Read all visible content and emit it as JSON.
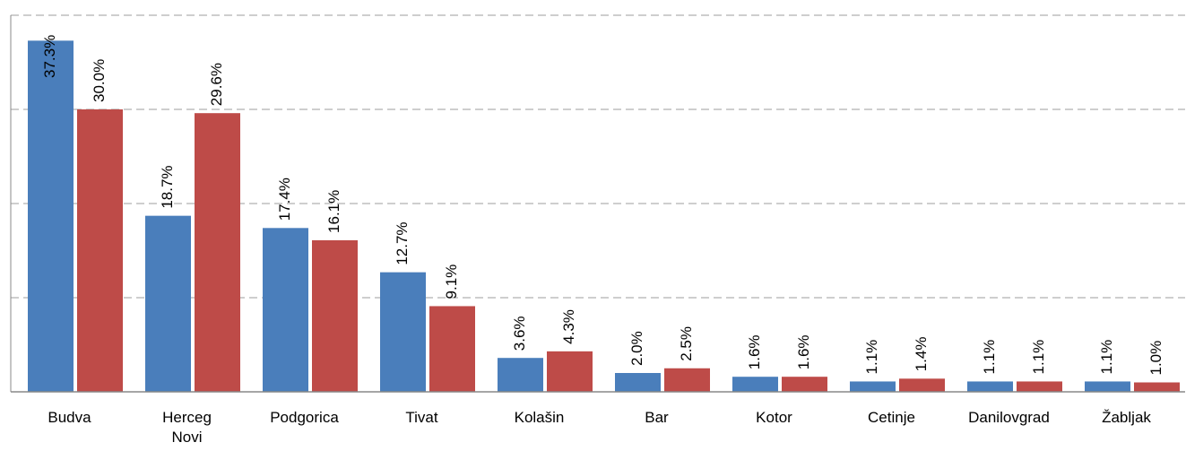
{
  "chart_data": {
    "type": "bar",
    "categories": [
      "Budva",
      "Herceg Novi",
      "Podgorica",
      "Tivat",
      "Kolašin",
      "Bar",
      "Kotor",
      "Cetinje",
      "Danilovgrad",
      "Žabljak"
    ],
    "series": [
      {
        "color": "#4a7ebb",
        "values": [
          37.3,
          18.7,
          17.4,
          12.7,
          3.6,
          2.0,
          1.6,
          1.1,
          1.1,
          1.1
        ],
        "value_labels": [
          "37.3%",
          "18.7%",
          "17.4%",
          "12.7%",
          "3.6%",
          "2.0%",
          "1.6%",
          "1.1%",
          "1.1%",
          "1.1%"
        ]
      },
      {
        "color": "#be4b48",
        "values": [
          30.0,
          29.6,
          16.1,
          9.1,
          4.3,
          2.5,
          1.6,
          1.4,
          1.1,
          1.0
        ],
        "value_labels": [
          "30.0%",
          "29.6%",
          "16.1%",
          "9.1%",
          "4.3%",
          "2.5%",
          "1.6%",
          "1.4%",
          "1.1%",
          "1.0%"
        ]
      }
    ],
    "ylim": [
      0,
      40
    ],
    "yticks": [
      0,
      10,
      20,
      30,
      40
    ],
    "grid": true
  }
}
